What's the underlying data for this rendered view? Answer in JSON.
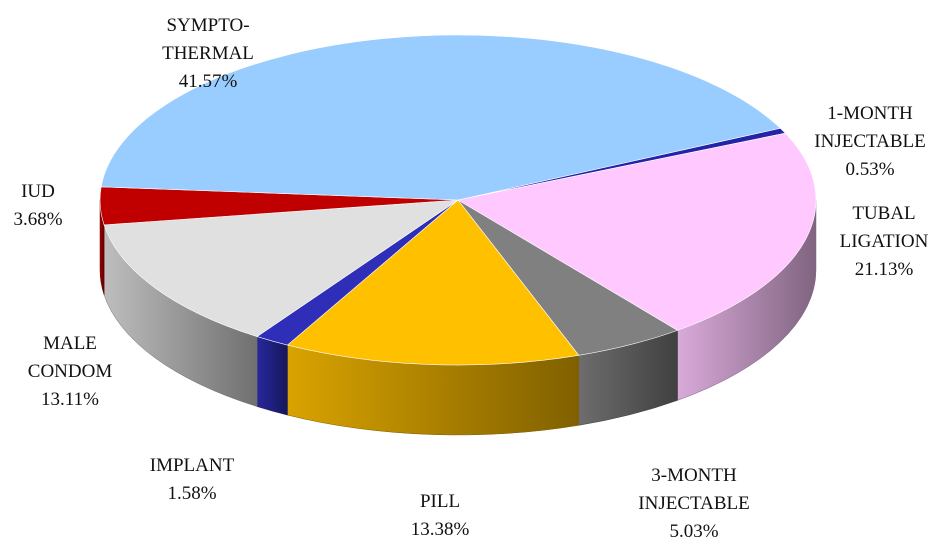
{
  "chart_data": {
    "type": "pie3d",
    "categories": [
      "1-MONTH\nINJECTABLE",
      "TUBAL\nLIGATION",
      "3-MONTH\nINJECTABLE",
      "PILL",
      "IMPLANT",
      "MALE\nCONDOM",
      "IUD",
      "SYMPTO-\nTHERMAL"
    ],
    "values": [
      0.53,
      21.13,
      5.03,
      13.38,
      1.58,
      13.11,
      3.68,
      41.57
    ],
    "value_labels": [
      "0.53%",
      "21.13%",
      "5.03%",
      "13.38%",
      "1.58%",
      "13.11%",
      "3.68%",
      "41.57%"
    ],
    "colors": [
      "#2424a8",
      "#ffc8ff",
      "#808080",
      "#ffc000",
      "#2e2eb8",
      "#e0e0e0",
      "#c00000",
      "#99ccff"
    ]
  }
}
